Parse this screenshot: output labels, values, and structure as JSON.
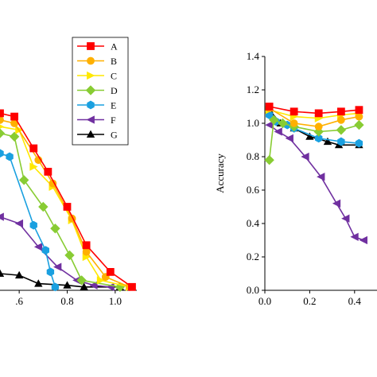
{
  "chart_data": [
    {
      "type": "line",
      "xlabel": "",
      "ylabel": "",
      "xlim": [
        0.52,
        1.09
      ],
      "ylim": [
        0.0,
        1.4
      ],
      "xticks": [
        {
          "value": 0.6,
          "label": ".6"
        },
        {
          "value": 0.8,
          "label": "0.8"
        },
        {
          "value": 1.0,
          "label": "1.0"
        }
      ],
      "legend_position": "top-right",
      "series": [
        {
          "name": "A",
          "color": "#ff0000",
          "marker": "square",
          "x": [
            0.52,
            0.58,
            0.66,
            0.72,
            0.8,
            0.88,
            0.98,
            1.07
          ],
          "y": [
            1.06,
            1.04,
            0.85,
            0.71,
            0.5,
            0.27,
            0.11,
            0.02
          ]
        },
        {
          "name": "B",
          "color": "#ffb000",
          "marker": "circle",
          "x": [
            0.52,
            0.58,
            0.68,
            0.74,
            0.82,
            0.88,
            0.96,
            1.06
          ],
          "y": [
            1.02,
            1.0,
            0.78,
            0.64,
            0.43,
            0.23,
            0.08,
            0.02
          ]
        },
        {
          "name": "C",
          "color": "#ffe800",
          "marker": "triangle-right",
          "x": [
            0.52,
            0.6,
            0.66,
            0.74,
            0.82,
            0.88,
            0.94,
            1.06
          ],
          "y": [
            0.98,
            0.96,
            0.74,
            0.62,
            0.42,
            0.2,
            0.06,
            0.02
          ]
        },
        {
          "name": "D",
          "color": "#88cc33",
          "marker": "diamond",
          "x": [
            0.52,
            0.58,
            0.62,
            0.7,
            0.75,
            0.81,
            0.86,
            1.02
          ],
          "y": [
            0.94,
            0.92,
            0.66,
            0.5,
            0.37,
            0.21,
            0.06,
            0.02
          ]
        },
        {
          "name": "E",
          "color": "#1aa0e0",
          "marker": "hexagon",
          "x": [
            0.52,
            0.56,
            0.66,
            0.71,
            0.73,
            0.75
          ],
          "y": [
            0.82,
            0.8,
            0.39,
            0.24,
            0.11,
            0.02
          ]
        },
        {
          "name": "F",
          "color": "#7030a0",
          "marker": "triangle-left",
          "x": [
            0.52,
            0.6,
            0.68,
            0.76,
            0.84,
            0.91,
            0.98
          ],
          "y": [
            0.44,
            0.4,
            0.26,
            0.14,
            0.06,
            0.03,
            0.02
          ]
        },
        {
          "name": "G",
          "color": "#000000",
          "marker": "triangle-up",
          "x": [
            0.52,
            0.6,
            0.68,
            0.8,
            0.87,
            1.02
          ],
          "y": [
            0.1,
            0.09,
            0.04,
            0.03,
            0.02,
            0.02
          ]
        }
      ]
    },
    {
      "type": "line",
      "xlabel": "",
      "ylabel": "Accuracy",
      "xlim": [
        0.0,
        0.5
      ],
      "ylim": [
        0.0,
        1.4
      ],
      "xticks": [
        {
          "value": 0.0,
          "label": "0.0"
        },
        {
          "value": 0.2,
          "label": "0.2"
        },
        {
          "value": 0.4,
          "label": "0.4"
        }
      ],
      "yticks": [
        {
          "value": 0.0,
          "label": "0.0"
        },
        {
          "value": 0.2,
          "label": "0.2"
        },
        {
          "value": 0.4,
          "label": "0.4"
        },
        {
          "value": 0.6,
          "label": "0.6"
        },
        {
          "value": 0.8,
          "label": "0.8"
        },
        {
          "value": 1.0,
          "label": "1.0"
        },
        {
          "value": 1.2,
          "label": "1.2"
        },
        {
          "value": 1.4,
          "label": "1.4"
        }
      ],
      "series": [
        {
          "name": "A",
          "color": "#ff0000",
          "marker": "square",
          "x": [
            0.02,
            0.13,
            0.24,
            0.34,
            0.42
          ],
          "y": [
            1.1,
            1.07,
            1.06,
            1.07,
            1.08
          ]
        },
        {
          "name": "B",
          "color": "#ffb000",
          "marker": "circle",
          "x": [
            0.02,
            0.13,
            0.24,
            0.34,
            0.42
          ],
          "y": [
            1.09,
            1.0,
            0.98,
            1.02,
            1.04
          ]
        },
        {
          "name": "C",
          "color": "#ffe800",
          "marker": "triangle-right",
          "x": [
            0.02,
            0.13,
            0.24,
            0.34,
            0.42
          ],
          "y": [
            1.08,
            1.04,
            1.03,
            1.05,
            1.06
          ]
        },
        {
          "name": "D",
          "color": "#88cc33",
          "marker": "diamond",
          "x": [
            0.02,
            0.04,
            0.08,
            0.13,
            0.24,
            0.34,
            0.42
          ],
          "y": [
            0.78,
            1.02,
            1.0,
            0.98,
            0.95,
            0.96,
            0.99
          ]
        },
        {
          "name": "E",
          "color": "#1aa0e0",
          "marker": "hexagon",
          "x": [
            0.02,
            0.05,
            0.1,
            0.13,
            0.24,
            0.34,
            0.42
          ],
          "y": [
            1.05,
            1.01,
            0.99,
            0.97,
            0.91,
            0.89,
            0.88
          ]
        },
        {
          "name": "F",
          "color": "#7030a0",
          "marker": "triangle-left",
          "x": [
            0.02,
            0.06,
            0.11,
            0.18,
            0.25,
            0.32,
            0.36,
            0.4,
            0.44
          ],
          "y": [
            0.99,
            0.95,
            0.91,
            0.8,
            0.68,
            0.52,
            0.43,
            0.32,
            0.3
          ]
        },
        {
          "name": "G",
          "color": "#000000",
          "marker": "triangle-up",
          "x": [
            0.02,
            0.07,
            0.13,
            0.2,
            0.28,
            0.33,
            0.42
          ],
          "y": [
            1.08,
            1.0,
            0.97,
            0.92,
            0.89,
            0.87,
            0.87
          ]
        }
      ]
    }
  ]
}
